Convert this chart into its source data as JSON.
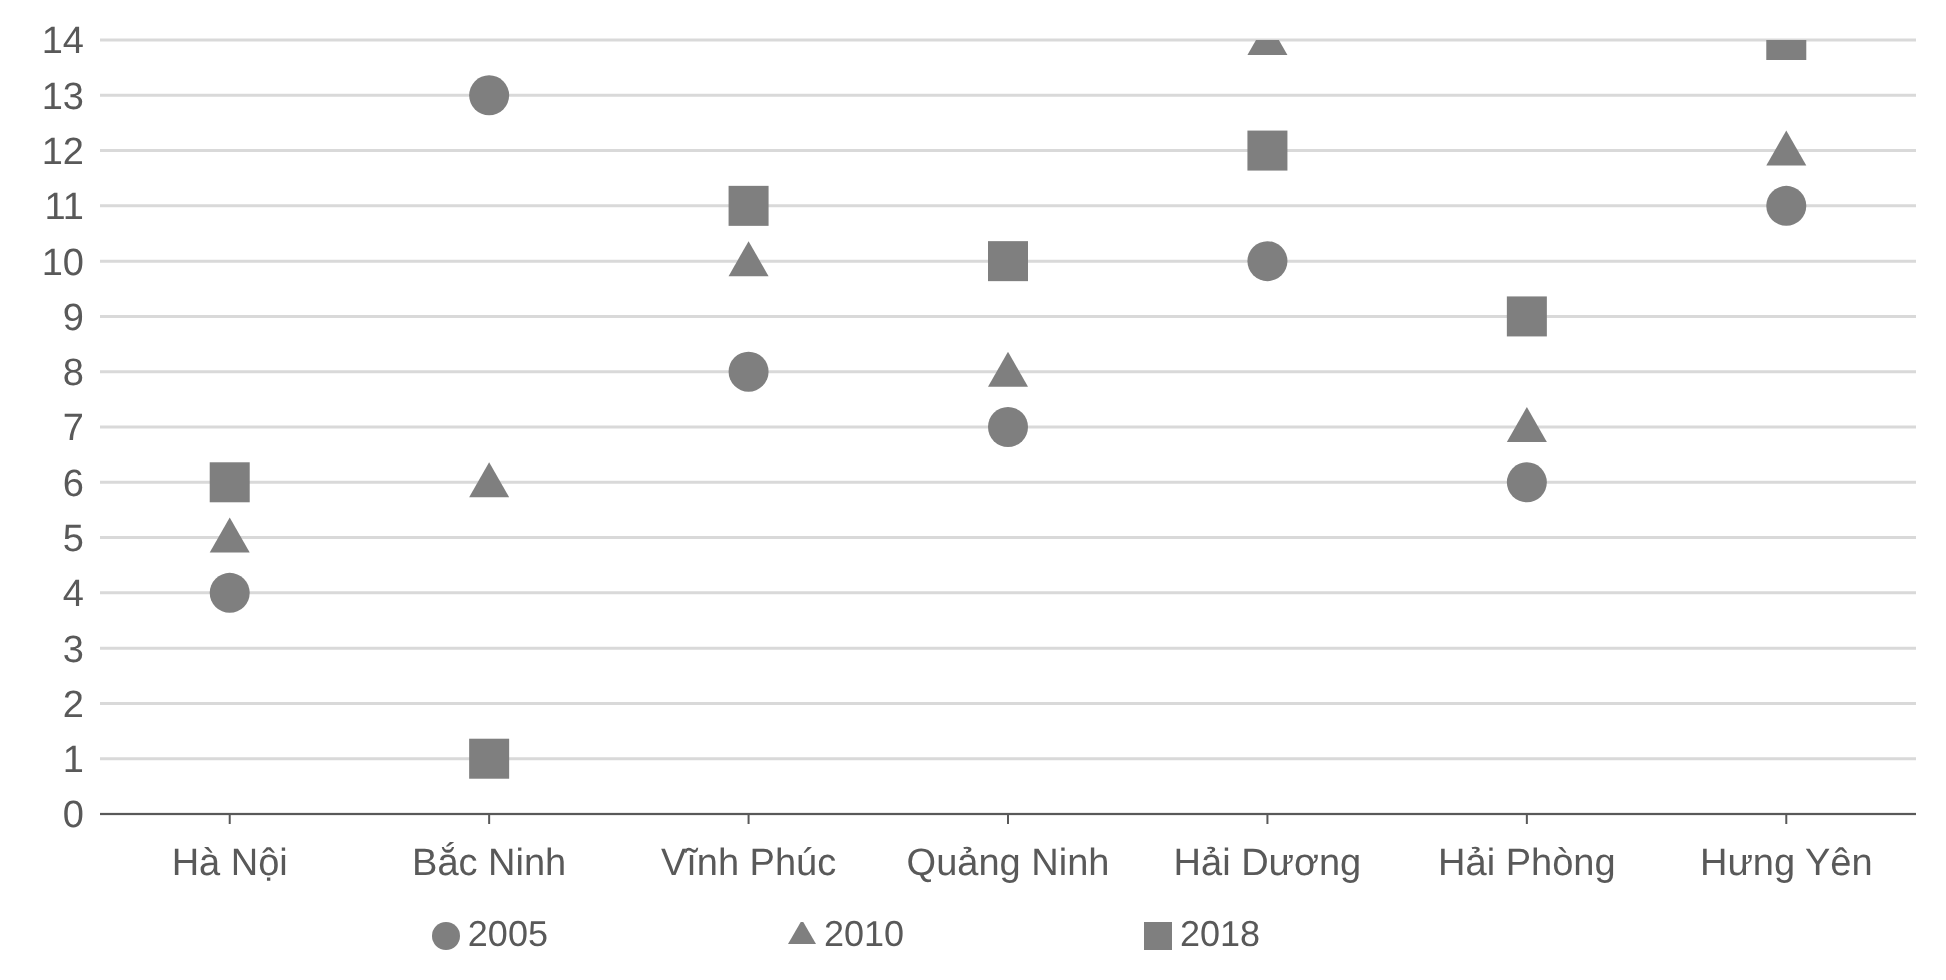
{
  "chart_data": {
    "type": "scatter",
    "categories": [
      "Hà Nội",
      "Bắc Ninh",
      "Vĩnh Phúc",
      "Quảng Ninh",
      "Hải Dương",
      "Hải Phòng",
      "Hưng Yên"
    ],
    "series": [
      {
        "name": "2005",
        "color": "#7f7f7f",
        "marker": "circle",
        "values": [
          4,
          13,
          8,
          7,
          10,
          6,
          11
        ]
      },
      {
        "name": "2010",
        "color": "#7f7f7f",
        "marker": "triangle",
        "values": [
          5,
          6,
          10,
          8,
          14,
          7,
          12
        ]
      },
      {
        "name": "2018",
        "color": "#7f7f7f",
        "marker": "square",
        "values": [
          6,
          1,
          11,
          10,
          12,
          9,
          14
        ]
      }
    ],
    "ylim": [
      0,
      14
    ],
    "yticks": [
      0,
      1,
      2,
      3,
      4,
      5,
      6,
      7,
      8,
      9,
      10,
      11,
      12,
      13,
      14
    ],
    "grid": "y",
    "legend": "bottom"
  }
}
